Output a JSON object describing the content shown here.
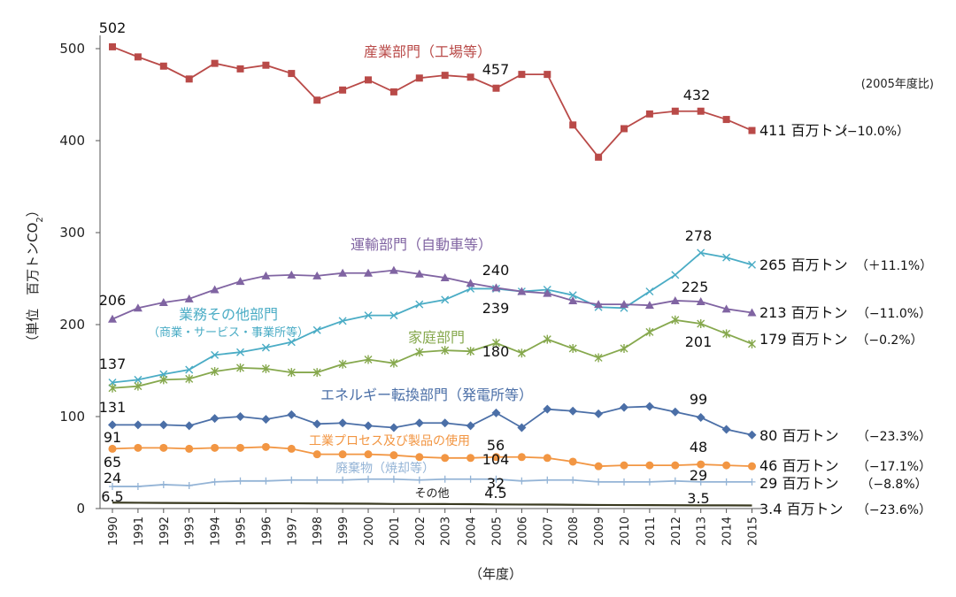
{
  "chart_data": {
    "type": "line",
    "ylabel_prefix": "（単位　百万トンCO",
    "ylabel_sub": "2",
    "ylabel_suffix": "）",
    "xlabel": "（年度）",
    "base_note": "(2005年度比)",
    "ylim": [
      0,
      520
    ],
    "yticks": [
      0,
      100,
      200,
      300,
      400,
      500
    ],
    "categories": [
      "1990",
      "1991",
      "1992",
      "1993",
      "1994",
      "1995",
      "1996",
      "1997",
      "1998",
      "1999",
      "2000",
      "2001",
      "2002",
      "2003",
      "2004",
      "2005",
      "2006",
      "2007",
      "2008",
      "2009",
      "2010",
      "2011",
      "2012",
      "2013",
      "2014",
      "2015"
    ],
    "series": [
      {
        "key": "industry",
        "name": "産業部門（工場等）",
        "color": "#b94a48",
        "marker": "square",
        "values": [
          502,
          491,
          481,
          467,
          484,
          478,
          482,
          473,
          444,
          455,
          466,
          453,
          468,
          471,
          469,
          457,
          472,
          472,
          417,
          382,
          413,
          429,
          432,
          432,
          423,
          411
        ],
        "end_value": "411",
        "end_unit": "百万トン",
        "end_change": "（−10.0%）"
      },
      {
        "key": "commercial",
        "name": "業務その他部門",
        "sub": "（商業・サービス・事業所等）",
        "color": "#4aacc5",
        "marker": "x",
        "values": [
          137,
          140,
          146,
          151,
          167,
          170,
          175,
          181,
          194,
          204,
          210,
          210,
          222,
          227,
          239,
          239,
          236,
          238,
          232,
          219,
          218,
          236,
          254,
          278,
          273,
          265
        ],
        "end_value": "265",
        "end_unit": "百万トン",
        "end_change": "（＋11.1%）"
      },
      {
        "key": "transport",
        "name": "運輸部門（自動車等）",
        "color": "#8064a2",
        "marker": "triangle",
        "values": [
          206,
          218,
          224,
          228,
          238,
          247,
          253,
          254,
          253,
          256,
          256,
          259,
          255,
          251,
          245,
          240,
          236,
          234,
          226,
          222,
          222,
          221,
          226,
          225,
          217,
          213
        ],
        "end_value": "213",
        "end_unit": "百万トン",
        "end_change": "（−11.0%）"
      },
      {
        "key": "household",
        "name": "家庭部門",
        "color": "#86a84d",
        "marker": "star",
        "values": [
          131,
          133,
          140,
          141,
          149,
          153,
          152,
          148,
          148,
          157,
          162,
          158,
          170,
          172,
          171,
          180,
          169,
          184,
          174,
          164,
          174,
          192,
          205,
          201,
          190,
          179
        ],
        "end_value": "179",
        "end_unit": "百万トン",
        "end_change": "（−0.2%）"
      },
      {
        "key": "energy",
        "name": "エネルギー転換部門（発電所等）",
        "color": "#4b6fa7",
        "marker": "diamond",
        "values": [
          91,
          91,
          91,
          90,
          98,
          100,
          97,
          102,
          92,
          93,
          90,
          88,
          93,
          93,
          90,
          104,
          88,
          108,
          106,
          103,
          110,
          111,
          105,
          99,
          86,
          80
        ],
        "end_value": "80",
        "end_unit": "百万トン",
        "end_change": "（−23.3%）"
      },
      {
        "key": "process",
        "name": "工業プロセス及び製品の使用",
        "color": "#f29643",
        "marker": "circle",
        "values": [
          65,
          66,
          66,
          65,
          66,
          66,
          67,
          65,
          59,
          59,
          59,
          58,
          56,
          55,
          55,
          56,
          56,
          55,
          51,
          46,
          47,
          47,
          47,
          48,
          47,
          46
        ],
        "end_value": "46",
        "end_unit": "百万トン",
        "end_change": "（−17.1%）"
      },
      {
        "key": "waste",
        "name": "廃棄物（焼却等）",
        "color": "#94b4d6",
        "marker": "plus",
        "values": [
          24,
          24,
          26,
          25,
          29,
          30,
          30,
          31,
          31,
          31,
          32,
          32,
          31,
          32,
          32,
          32,
          30,
          31,
          31,
          29,
          29,
          29,
          30,
          29,
          29,
          29
        ],
        "end_value": "29",
        "end_unit": "百万トン",
        "end_change": "（−8.8%）"
      },
      {
        "key": "other",
        "name": "その他",
        "color": "#3a3a20",
        "marker": "none",
        "values": [
          6.5,
          6.3,
          6.1,
          6,
          5.9,
          5.8,
          5.8,
          5.7,
          5.5,
          5.4,
          5.3,
          5,
          5,
          4.9,
          4.8,
          4.5,
          4.4,
          4.3,
          4.1,
          3.9,
          3.8,
          3.7,
          3.6,
          3.5,
          3.5,
          3.4
        ],
        "end_value": "3.4",
        "end_unit": "百万トン",
        "end_change": "（−23.6%）"
      }
    ],
    "data_labels": [
      {
        "series": "industry",
        "index": 0,
        "text": "502"
      },
      {
        "series": "industry",
        "index": 15,
        "text": "457"
      },
      {
        "series": "industry",
        "index": 23,
        "text": "432"
      },
      {
        "series": "commercial",
        "index": 0,
        "text": "137"
      },
      {
        "series": "commercial",
        "index": 15,
        "text": "239"
      },
      {
        "series": "commercial",
        "index": 23,
        "text": "278"
      },
      {
        "series": "transport",
        "index": 0,
        "text": "206"
      },
      {
        "series": "transport",
        "index": 15,
        "text": "240"
      },
      {
        "series": "transport",
        "index": 23,
        "text": "225"
      },
      {
        "series": "household",
        "index": 0,
        "text": "131"
      },
      {
        "series": "household",
        "index": 15,
        "text": "180"
      },
      {
        "series": "household",
        "index": 23,
        "text": "201"
      },
      {
        "series": "energy",
        "index": 0,
        "text": "91"
      },
      {
        "series": "energy",
        "index": 15,
        "text": "104"
      },
      {
        "series": "energy",
        "index": 23,
        "text": "99"
      },
      {
        "series": "process",
        "index": 0,
        "text": "65"
      },
      {
        "series": "process",
        "index": 15,
        "text": "56"
      },
      {
        "series": "process",
        "index": 23,
        "text": "48"
      },
      {
        "series": "waste",
        "index": 0,
        "text": "24"
      },
      {
        "series": "waste",
        "index": 15,
        "text": "32"
      },
      {
        "series": "waste",
        "index": 23,
        "text": "29"
      },
      {
        "series": "other",
        "index": 0,
        "text": "6.5"
      },
      {
        "series": "other",
        "index": 15,
        "text": "4.5"
      },
      {
        "series": "other",
        "index": 23,
        "text": "3.5"
      }
    ]
  }
}
